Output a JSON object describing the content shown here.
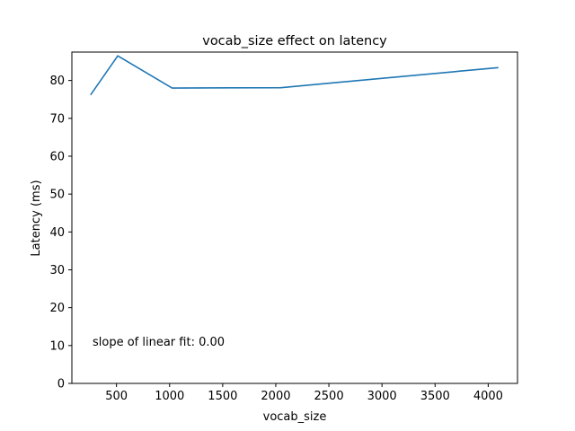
{
  "chart_data": {
    "type": "line",
    "title": "vocab_size effect on latency",
    "xlabel": "vocab_size",
    "ylabel": "Latency (ms)",
    "xlim": [
      80,
      4276
    ],
    "ylim": [
      0,
      87.5
    ],
    "xticks": [
      500,
      1000,
      1500,
      2000,
      2500,
      3000,
      3500,
      4000
    ],
    "xtick_labels": [
      "500",
      "1000",
      "1500",
      "2000",
      "2500",
      "3000",
      "3500",
      "4000"
    ],
    "yticks": [
      0,
      10,
      20,
      30,
      40,
      50,
      60,
      70,
      80
    ],
    "ytick_labels": [
      "0",
      "10",
      "20",
      "30",
      "40",
      "50",
      "60",
      "70",
      "80"
    ],
    "grid": false,
    "series": [
      {
        "color": "#1f77b4",
        "x": [
          256,
          512,
          1024,
          2048,
          4096
        ],
        "y": [
          76.2,
          86.5,
          78.0,
          78.1,
          83.4
        ]
      }
    ],
    "annotation": "slope of linear fit: 0.00"
  }
}
